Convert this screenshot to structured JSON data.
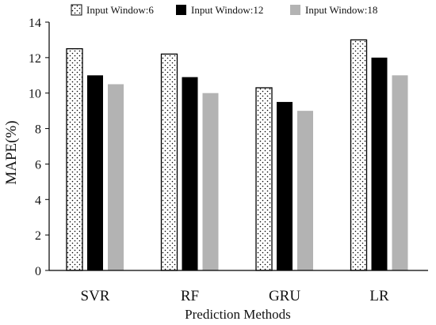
{
  "chart_data": {
    "type": "bar",
    "title": "",
    "xlabel": "Prediction Methods",
    "ylabel": "MAPE(%)",
    "ylim": [
      0,
      14
    ],
    "yticks": [
      0,
      2,
      4,
      6,
      8,
      10,
      12,
      14
    ],
    "categories": [
      "SVR",
      "RF",
      "GRU",
      "LR"
    ],
    "series": [
      {
        "name": "Input Window:6",
        "values": [
          12.5,
          12.2,
          10.3,
          13.0
        ],
        "pattern": "dots",
        "color": "#ffffff"
      },
      {
        "name": "Input Window:12",
        "values": [
          11.0,
          10.9,
          9.5,
          12.0
        ],
        "pattern": "solid",
        "color": "#000000"
      },
      {
        "name": "Input Window:18",
        "values": [
          10.5,
          10.0,
          9.0,
          11.0
        ],
        "pattern": "solid",
        "color": "#b3b3b3"
      }
    ],
    "legend_position": "top",
    "grid": false
  }
}
